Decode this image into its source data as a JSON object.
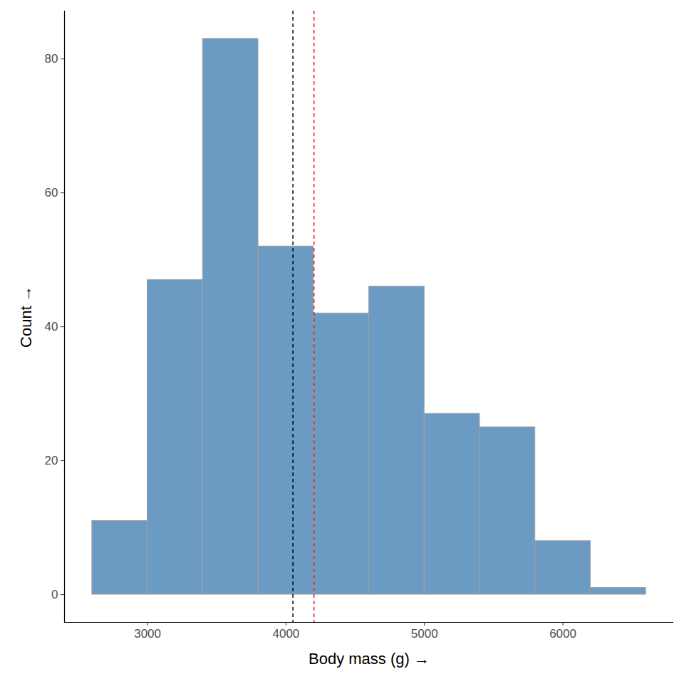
{
  "chart_data": {
    "type": "histogram",
    "xlabel": "Body mass (g)",
    "ylabel": "Count",
    "bins": [
      2600,
      3000,
      3400,
      3800,
      4200,
      4600,
      5000,
      5400,
      5800,
      6200,
      6600
    ],
    "values": [
      11,
      47,
      83,
      52,
      42,
      46,
      27,
      25,
      8,
      1
    ],
    "color": "#6b9bc3",
    "xlim": [
      2400,
      6800
    ],
    "xticks": [
      3000,
      4000,
      5000,
      6000
    ],
    "ylim": [
      -4.15,
      87.15
    ],
    "yticks": [
      0,
      20,
      40,
      60,
      80
    ],
    "grid": false,
    "reference_lines": [
      {
        "value": 4050,
        "color": "#000000",
        "line_style": "dashed"
      },
      {
        "value": 4202,
        "color": "#e41a1c",
        "line_style": "dashed"
      }
    ]
  }
}
